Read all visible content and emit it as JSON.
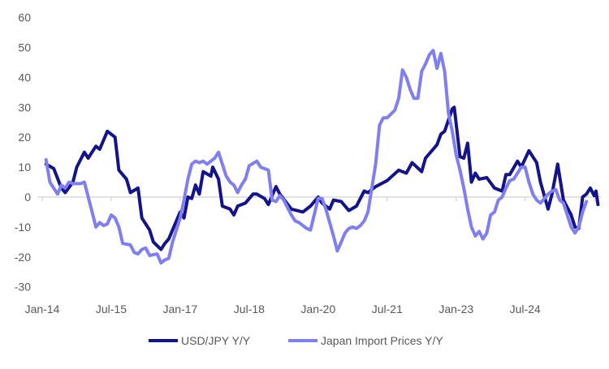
{
  "chart_data": {
    "type": "line",
    "title": "",
    "xlabel": "",
    "ylabel": "",
    "x_units": "months since Jan-2014",
    "ylim": [
      -30,
      60
    ],
    "yticks": [
      -30,
      -20,
      -10,
      0,
      10,
      20,
      30,
      40,
      50,
      60
    ],
    "xtick_labels": [
      {
        "label": "Jan-14",
        "month": 0
      },
      {
        "label": "Jul-15",
        "month": 18
      },
      {
        "label": "Jan-17",
        "month": 36
      },
      {
        "label": "Jul-18",
        "month": 54
      },
      {
        "label": "Jan-20",
        "month": 72
      },
      {
        "label": "Jul-21",
        "month": 90
      },
      {
        "label": "Jan-23",
        "month": 108
      },
      {
        "label": "Jul-24",
        "month": 126
      }
    ],
    "legend_position": "bottom",
    "grid": false,
    "series": [
      {
        "name": "USD/JPY Y/Y",
        "color": "#13138a",
        "points": [
          [
            1,
            11
          ],
          [
            3,
            9.5
          ],
          [
            5,
            3
          ],
          [
            6,
            1.5
          ],
          [
            8,
            5
          ],
          [
            9,
            10
          ],
          [
            11,
            15
          ],
          [
            12,
            13
          ],
          [
            14,
            17
          ],
          [
            15,
            16
          ],
          [
            17,
            22
          ],
          [
            19,
            20
          ],
          [
            20,
            9
          ],
          [
            22,
            6
          ],
          [
            23,
            1.5
          ],
          [
            25,
            3
          ],
          [
            26,
            -7
          ],
          [
            28,
            -11
          ],
          [
            29,
            -15
          ],
          [
            31,
            -17.5
          ],
          [
            32,
            -15.5
          ],
          [
            33,
            -14
          ],
          [
            36,
            -5
          ],
          [
            37,
            -7
          ],
          [
            38,
            0
          ],
          [
            39,
            -0.5
          ],
          [
            40,
            4
          ],
          [
            41,
            1
          ],
          [
            42,
            8.5
          ],
          [
            44,
            7
          ],
          [
            44.5,
            10
          ],
          [
            46,
            6
          ],
          [
            47,
            -3
          ],
          [
            49,
            -4
          ],
          [
            50,
            -6
          ],
          [
            51,
            -3
          ],
          [
            53,
            -2
          ],
          [
            55,
            1
          ],
          [
            56,
            1
          ],
          [
            58,
            -0.5
          ],
          [
            59,
            -2.5
          ],
          [
            61,
            3.5
          ],
          [
            62,
            1
          ],
          [
            65,
            -4
          ],
          [
            68,
            -5
          ],
          [
            70,
            -3
          ],
          [
            72,
            0
          ],
          [
            73,
            -2
          ],
          [
            75,
            -4
          ],
          [
            76,
            -1
          ],
          [
            78,
            -1.5
          ],
          [
            80,
            -4.5
          ],
          [
            82,
            -3
          ],
          [
            84,
            2
          ],
          [
            85,
            1.5
          ],
          [
            87,
            3.5
          ],
          [
            90,
            5.5
          ],
          [
            93,
            9
          ],
          [
            95,
            8
          ],
          [
            96.5,
            11.5
          ],
          [
            99,
            8.5
          ],
          [
            100,
            13
          ],
          [
            103,
            17.5
          ],
          [
            104,
            21
          ],
          [
            105,
            22
          ],
          [
            107,
            29.5
          ],
          [
            107.5,
            30
          ],
          [
            109,
            13.5
          ],
          [
            110,
            13
          ],
          [
            111,
            18
          ],
          [
            112,
            5
          ],
          [
            113,
            8
          ],
          [
            114,
            6
          ],
          [
            116,
            6.5
          ],
          [
            118,
            3
          ],
          [
            120,
            2
          ],
          [
            121,
            7.5
          ],
          [
            122,
            7.5
          ],
          [
            124,
            12
          ],
          [
            125,
            10
          ],
          [
            127,
            15.5
          ],
          [
            129,
            11.5
          ],
          [
            130,
            5
          ],
          [
            132,
            -4
          ],
          [
            133,
            1
          ],
          [
            134.5,
            11
          ],
          [
            136,
            -1
          ],
          [
            138,
            -6
          ],
          [
            139,
            -10
          ],
          [
            140,
            -10.5
          ],
          [
            141,
            0
          ],
          [
            142,
            1
          ],
          [
            143,
            3
          ],
          [
            144,
            0.5
          ],
          [
            144.5,
            2
          ],
          [
            145,
            -2.5
          ]
        ]
      },
      {
        "name": "Japan Import Prices Y/Y",
        "color": "#7f7ff2",
        "points": [
          [
            1,
            12.5
          ],
          [
            2,
            5
          ],
          [
            4,
            1
          ],
          [
            5,
            4
          ],
          [
            6,
            3
          ],
          [
            7,
            5
          ],
          [
            8,
            4.5
          ],
          [
            10,
            4.5
          ],
          [
            11,
            5
          ],
          [
            13,
            -5
          ],
          [
            14,
            -10
          ],
          [
            15,
            -8.5
          ],
          [
            16,
            -9.5
          ],
          [
            17,
            -9
          ],
          [
            18,
            -6
          ],
          [
            19,
            -7
          ],
          [
            20,
            -10
          ],
          [
            21,
            -15.5
          ],
          [
            23,
            -16
          ],
          [
            24,
            -18.5
          ],
          [
            25,
            -19
          ],
          [
            26,
            -17.5
          ],
          [
            27,
            -17
          ],
          [
            28,
            -19.5
          ],
          [
            30,
            -19
          ],
          [
            31,
            -22
          ],
          [
            32,
            -21
          ],
          [
            33,
            -20.5
          ],
          [
            34,
            -15
          ],
          [
            36,
            -7
          ],
          [
            37,
            -1
          ],
          [
            38,
            6
          ],
          [
            39,
            11
          ],
          [
            40,
            12
          ],
          [
            41,
            11.5
          ],
          [
            42,
            12
          ],
          [
            43,
            11
          ],
          [
            44,
            12
          ],
          [
            45,
            13
          ],
          [
            46,
            15
          ],
          [
            48,
            7
          ],
          [
            49,
            5
          ],
          [
            50,
            4
          ],
          [
            51,
            1.5
          ],
          [
            52,
            4
          ],
          [
            53,
            6
          ],
          [
            54,
            10.5
          ],
          [
            56,
            12
          ],
          [
            57,
            10
          ],
          [
            59,
            9
          ],
          [
            60,
            -1
          ],
          [
            61,
            -1.5
          ],
          [
            62,
            0.5
          ],
          [
            63,
            -1
          ],
          [
            65,
            -6
          ],
          [
            66,
            -8
          ],
          [
            67,
            -8.5
          ],
          [
            69,
            -10.5
          ],
          [
            70,
            -11
          ],
          [
            72,
            -0.5
          ],
          [
            73,
            -0.5
          ],
          [
            74,
            -4
          ],
          [
            76,
            -13
          ],
          [
            77,
            -18
          ],
          [
            78,
            -15
          ],
          [
            79,
            -12
          ],
          [
            80,
            -10.5
          ],
          [
            81,
            -10
          ],
          [
            82,
            -10.5
          ],
          [
            83,
            -9.5
          ],
          [
            84,
            -8
          ],
          [
            85,
            -5
          ],
          [
            86,
            3
          ],
          [
            87,
            11
          ],
          [
            88,
            24
          ],
          [
            89,
            26.5
          ],
          [
            90,
            26.5
          ],
          [
            92,
            29
          ],
          [
            93,
            33
          ],
          [
            94,
            42.5
          ],
          [
            95,
            40
          ],
          [
            96,
            36
          ],
          [
            97,
            33
          ],
          [
            98,
            33
          ],
          [
            99,
            42
          ],
          [
            100,
            44.5
          ],
          [
            101,
            47.5
          ],
          [
            102,
            49
          ],
          [
            103,
            43
          ],
          [
            104,
            48
          ],
          [
            105,
            42
          ],
          [
            106,
            28
          ],
          [
            107,
            22
          ],
          [
            108,
            14
          ],
          [
            109,
            9
          ],
          [
            110,
            3
          ],
          [
            111,
            -4
          ],
          [
            112,
            -10
          ],
          [
            113,
            -13
          ],
          [
            114,
            -11.5
          ],
          [
            115,
            -14
          ],
          [
            116,
            -12
          ],
          [
            117,
            -6
          ],
          [
            118,
            -5
          ],
          [
            119,
            -1
          ],
          [
            120,
            0
          ],
          [
            121,
            3
          ],
          [
            122,
            5.5
          ],
          [
            123,
            6
          ],
          [
            124,
            8
          ],
          [
            125,
            10
          ],
          [
            126,
            10
          ],
          [
            127,
            5
          ],
          [
            128,
            1
          ],
          [
            129,
            -1
          ],
          [
            130,
            -2
          ],
          [
            131,
            -0.5
          ],
          [
            132,
            1
          ],
          [
            133,
            2
          ],
          [
            134,
            2.5
          ],
          [
            135,
            -1
          ],
          [
            136,
            -2
          ],
          [
            137,
            -6
          ],
          [
            138,
            -10
          ],
          [
            139,
            -12
          ],
          [
            140,
            -10
          ],
          [
            141,
            -5
          ],
          [
            142,
            -1.5
          ]
        ]
      }
    ]
  }
}
